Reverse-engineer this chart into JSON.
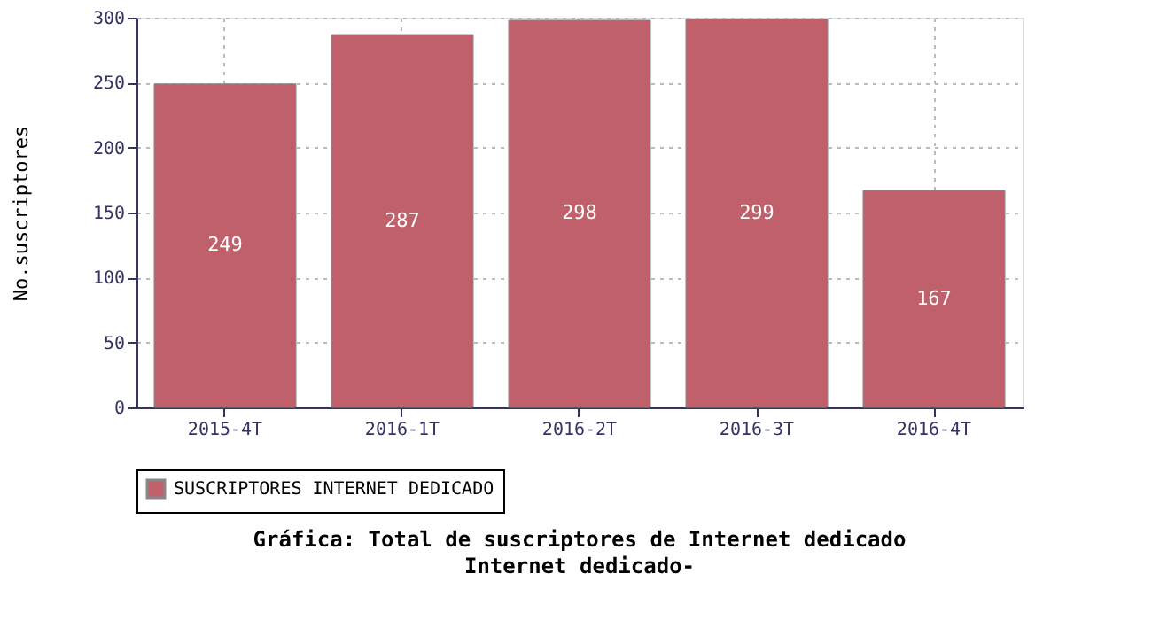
{
  "chart_data": {
    "type": "bar",
    "title": "Gráfica: Total de suscriptores de Internet dedicado",
    "subtitle": "Internet dedicado-",
    "ylabel": "No.suscriptores",
    "categories": [
      "2015-4T",
      "2016-1T",
      "2016-2T",
      "2016-3T",
      "2016-4T"
    ],
    "series": [
      {
        "name": "SUSCRIPTORES INTERNET DEDICADO",
        "color": "#c0606a",
        "values": [
          249,
          287,
          298,
          299,
          167
        ]
      }
    ],
    "ylim": [
      0,
      300
    ],
    "yticks": [
      0,
      50,
      100,
      150,
      200,
      250,
      300
    ],
    "grid": true,
    "legend": "bottom",
    "data_labels": true
  }
}
